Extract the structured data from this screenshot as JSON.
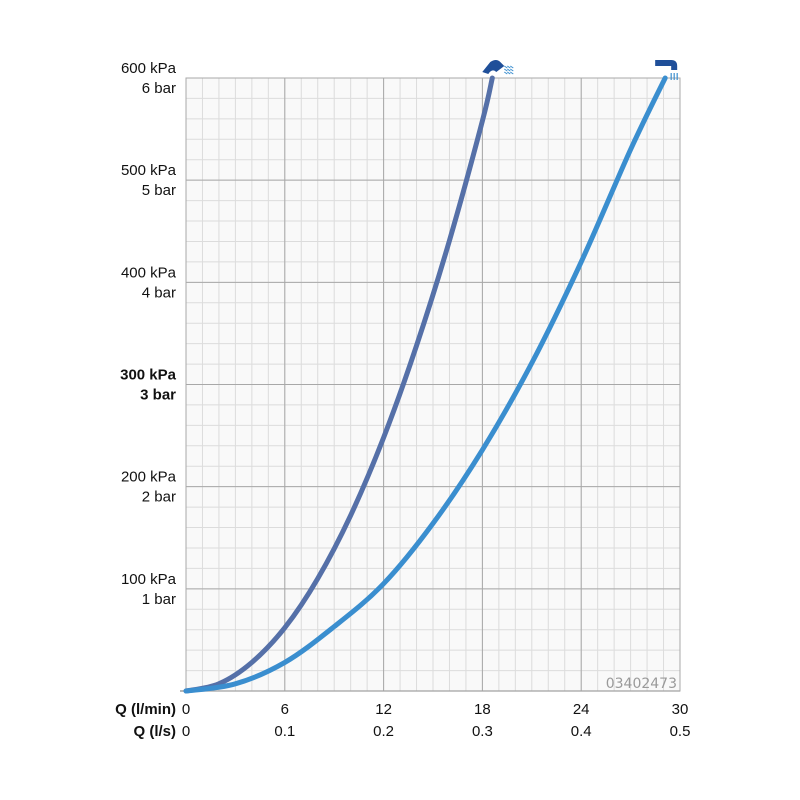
{
  "chart_data": {
    "type": "line",
    "grid": true,
    "xlabel": "Q (l/min)",
    "xlabel2": "Q (l/s)",
    "xlim": [
      0,
      30
    ],
    "ylim": [
      0,
      600
    ],
    "x_ticks": [
      {
        "value": 0,
        "label": "0",
        "label2": "0"
      },
      {
        "value": 6,
        "label": "6",
        "label2": "0.1"
      },
      {
        "value": 12,
        "label": "12",
        "label2": "0.2"
      },
      {
        "value": 18,
        "label": "18",
        "label2": "0.3"
      },
      {
        "value": 24,
        "label": "24",
        "label2": "0.4"
      },
      {
        "value": 30,
        "label": "30",
        "label2": "0.5"
      }
    ],
    "y_ticks": [
      {
        "value": 100,
        "kpa": "100 kPa",
        "bar": "1 bar",
        "bold": false
      },
      {
        "value": 200,
        "kpa": "200 kPa",
        "bar": "2 bar",
        "bold": false
      },
      {
        "value": 300,
        "kpa": "300 kPa",
        "bar": "3 bar",
        "bold": true
      },
      {
        "value": 400,
        "kpa": "400 kPa",
        "bar": "4 bar",
        "bold": false
      },
      {
        "value": 500,
        "kpa": "500 kPa",
        "bar": "5 bar",
        "bold": false
      },
      {
        "value": 600,
        "kpa": "600 kPa",
        "bar": "6 bar",
        "bold": false
      }
    ],
    "series": [
      {
        "icon": "hand-shower-icon",
        "color": "#5570a8",
        "x": [
          0,
          2,
          4,
          6,
          8,
          10,
          12,
          14,
          16,
          18,
          18.6
        ],
        "y": [
          0,
          7,
          28,
          62,
          110,
          172,
          248,
          338,
          441,
          558,
          600
        ]
      },
      {
        "icon": "overhead-shower-icon",
        "color": "#3a8ecf",
        "x": [
          0,
          3,
          6,
          9,
          12,
          15,
          18,
          21,
          24,
          27,
          29.1
        ],
        "y": [
          0,
          7,
          28,
          63,
          105,
          164,
          236,
          321,
          420,
          530,
          600
        ]
      }
    ],
    "code": "03402473"
  },
  "colors": {
    "grid_major": "#a8a8a8",
    "grid_minor": "#dcdcdc",
    "plot_bg": "#f9f9f9",
    "icon_dark": "#1f4f99",
    "icon_light": "#3a8ecf"
  }
}
